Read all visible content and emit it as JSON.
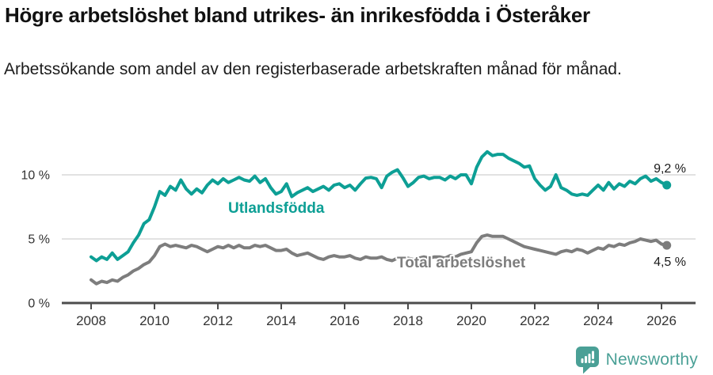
{
  "header": {
    "title": "Högre arbetslöshet bland utrikes- än inrikesfödda i Österåker",
    "subtitle": "Arbetssökande som andel av den registerbaserade arbetskraften månad för månad."
  },
  "chart_data": {
    "type": "line",
    "unit": "%",
    "x_start": 2008.0,
    "x_step": 0.1666667,
    "xlim": [
      2007.1,
      2027.1
    ],
    "ylim": [
      0,
      12.5
    ],
    "grid": "horizontal",
    "x_ticks": [
      2008,
      2010,
      2012,
      2014,
      2016,
      2018,
      2020,
      2022,
      2024,
      2026
    ],
    "y_ticks": [
      {
        "value": 0,
        "label": "0 %"
      },
      {
        "value": 5,
        "label": "5 %"
      },
      {
        "value": 10,
        "label": "10 %"
      }
    ],
    "series": [
      {
        "name": "Utlandsfödda",
        "slug": "utlandsfodda",
        "color": "#0d9f95",
        "end_label": "9,2 %",
        "end_value": 9.2,
        "values": [
          3.6,
          3.3,
          3.6,
          3.4,
          3.9,
          3.4,
          3.7,
          4.0,
          4.7,
          5.3,
          6.2,
          6.5,
          7.5,
          8.7,
          8.4,
          9.1,
          8.8,
          9.6,
          8.9,
          8.5,
          8.9,
          8.6,
          9.2,
          9.6,
          9.3,
          9.7,
          9.4,
          9.6,
          9.8,
          9.6,
          9.5,
          9.9,
          9.4,
          9.7,
          9.0,
          8.5,
          8.7,
          9.3,
          8.3,
          8.6,
          8.8,
          9.0,
          8.7,
          8.9,
          9.1,
          8.8,
          9.2,
          9.3,
          9.0,
          9.2,
          8.8,
          9.3,
          9.75,
          9.8,
          9.7,
          9.0,
          9.9,
          10.2,
          10.4,
          9.8,
          9.1,
          9.4,
          9.8,
          9.9,
          9.7,
          9.8,
          9.8,
          9.6,
          9.9,
          9.7,
          10.0,
          10.0,
          9.3,
          10.6,
          11.4,
          11.8,
          11.5,
          11.6,
          11.6,
          11.3,
          11.1,
          10.9,
          10.6,
          10.7,
          9.7,
          9.2,
          8.8,
          9.1,
          10.0,
          9.0,
          8.8,
          8.5,
          8.4,
          8.5,
          8.4,
          8.8,
          9.2,
          8.8,
          9.4,
          8.9,
          9.3,
          9.1,
          9.5,
          9.3,
          9.7,
          9.9,
          9.5,
          9.7,
          9.4,
          9.2
        ]
      },
      {
        "name": "Total arbetslöshet",
        "slug": "total-arbetsloshet",
        "color": "#7d7d7d",
        "end_label": "4,5 %",
        "end_value": 4.5,
        "values": [
          1.8,
          1.5,
          1.7,
          1.6,
          1.8,
          1.7,
          2.0,
          2.2,
          2.5,
          2.7,
          3.0,
          3.2,
          3.7,
          4.4,
          4.6,
          4.4,
          4.5,
          4.4,
          4.3,
          4.5,
          4.4,
          4.2,
          4.0,
          4.2,
          4.4,
          4.3,
          4.5,
          4.3,
          4.5,
          4.3,
          4.3,
          4.5,
          4.4,
          4.5,
          4.3,
          4.1,
          4.1,
          4.2,
          3.9,
          3.7,
          3.8,
          3.9,
          3.7,
          3.5,
          3.4,
          3.6,
          3.7,
          3.6,
          3.6,
          3.7,
          3.5,
          3.4,
          3.6,
          3.5,
          3.5,
          3.6,
          3.4,
          3.3,
          3.5,
          3.6,
          3.5,
          3.4,
          3.5,
          3.6,
          3.5,
          3.6,
          3.6,
          3.5,
          3.7,
          3.6,
          3.8,
          3.9,
          4.0,
          4.7,
          5.2,
          5.3,
          5.2,
          5.2,
          5.2,
          5.0,
          4.8,
          4.6,
          4.4,
          4.3,
          4.2,
          4.1,
          4.0,
          3.9,
          3.8,
          4.0,
          4.1,
          4.0,
          4.2,
          4.1,
          3.9,
          4.1,
          4.3,
          4.2,
          4.5,
          4.4,
          4.6,
          4.5,
          4.7,
          4.8,
          5.0,
          4.9,
          4.8,
          4.9,
          4.6,
          4.5
        ]
      }
    ]
  },
  "footer": {
    "brand": "Newsworthy"
  },
  "colors": {
    "accent": "#0d9f95",
    "gray_line": "#7d7d7d",
    "logo": "#4aa096",
    "grid": "#d9d9d9",
    "axis": "#4c4c4c",
    "text": "#1a1a1a"
  }
}
